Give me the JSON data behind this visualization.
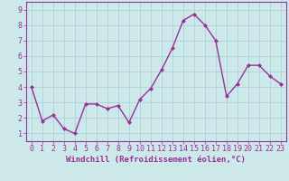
{
  "x": [
    0,
    1,
    2,
    3,
    4,
    5,
    6,
    7,
    8,
    9,
    10,
    11,
    12,
    13,
    14,
    15,
    16,
    17,
    18,
    19,
    20,
    21,
    22,
    23
  ],
  "y": [
    4.0,
    1.8,
    2.2,
    1.3,
    1.0,
    2.9,
    2.9,
    2.6,
    2.8,
    1.7,
    3.2,
    3.9,
    5.1,
    6.5,
    8.3,
    8.7,
    8.0,
    7.0,
    3.4,
    4.2,
    5.4,
    5.4,
    4.7,
    4.2
  ],
  "line_color": "#993399",
  "marker": "D",
  "marker_size": 2,
  "bg_color": "#cce8e8",
  "grid_color": "#b0d0d8",
  "axis_color": "#993399",
  "xlabel": "Windchill (Refroidissement éolien,°C)",
  "ylabel": "",
  "title": "",
  "xlim": [
    -0.5,
    23.5
  ],
  "ylim": [
    0.5,
    9.5
  ],
  "yticks": [
    1,
    2,
    3,
    4,
    5,
    6,
    7,
    8,
    9
  ],
  "xticks": [
    0,
    1,
    2,
    3,
    4,
    5,
    6,
    7,
    8,
    9,
    10,
    11,
    12,
    13,
    14,
    15,
    16,
    17,
    18,
    19,
    20,
    21,
    22,
    23
  ],
  "tick_fontsize": 6,
  "label_fontsize": 6.5,
  "line_width": 1.0
}
